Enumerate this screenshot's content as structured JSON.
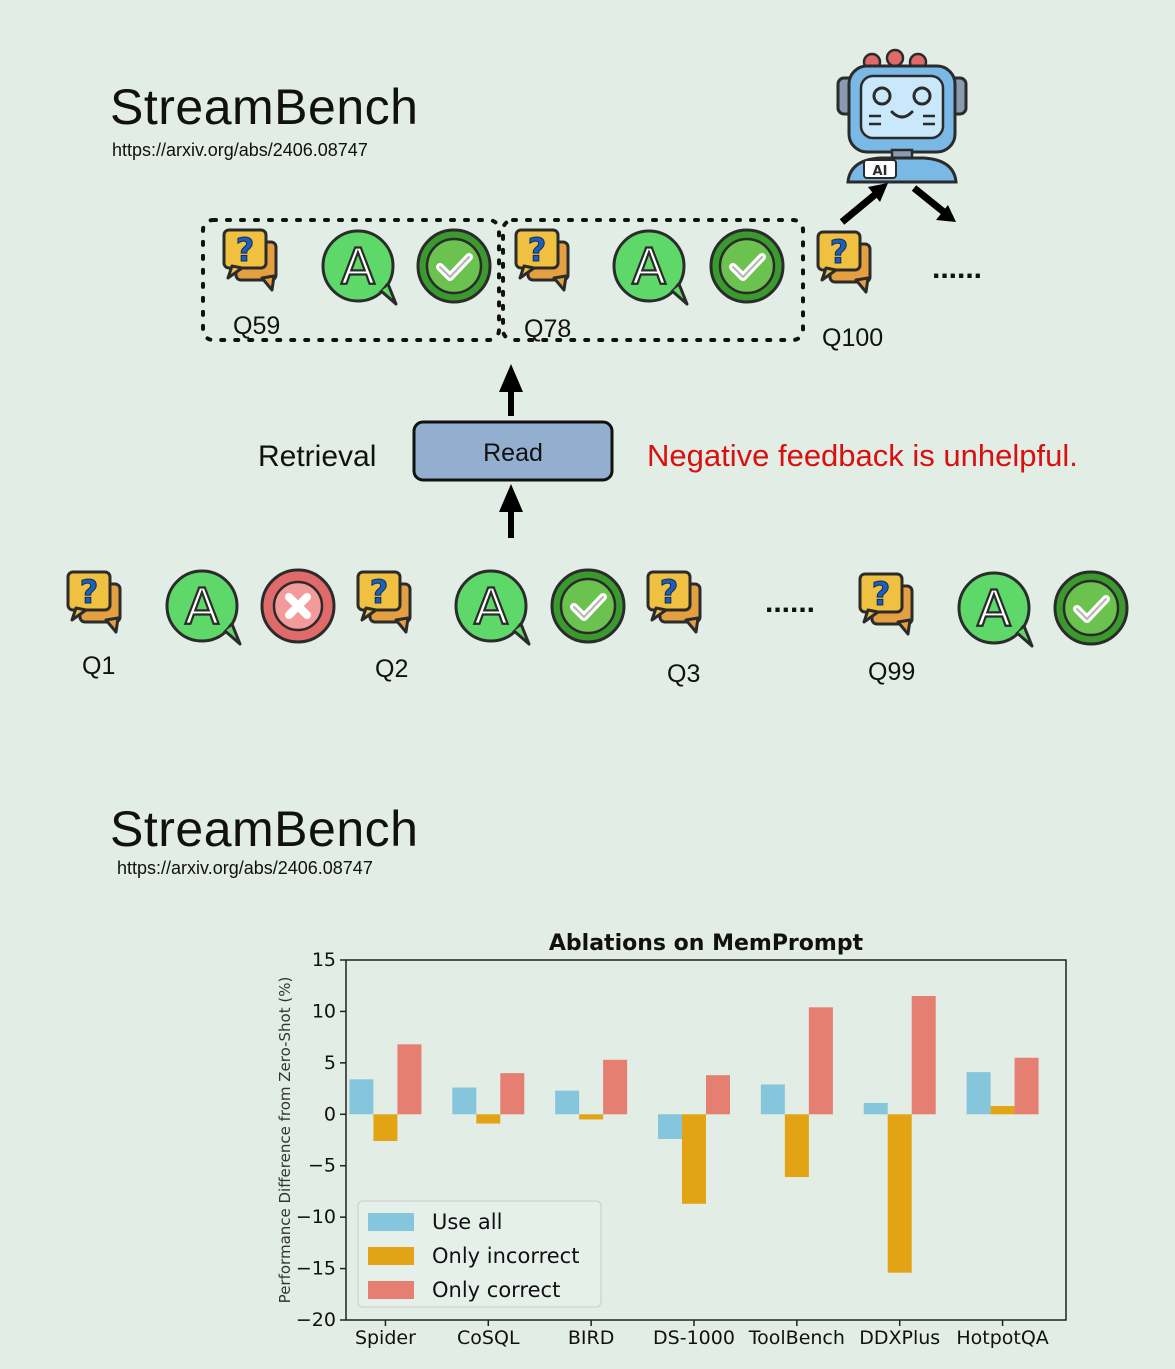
{
  "top": {
    "title": "StreamBench",
    "url": "https://arxiv.org/abs/2406.08747",
    "robot_badge": "AI",
    "retrieved": [
      {
        "label": "Q59"
      },
      {
        "label": "Q78"
      }
    ],
    "current_label": "Q100",
    "ellipsis": "......",
    "retrieval_label": "Retrieval",
    "read_button": "Read",
    "feedback_note": "Negative feedback is unhelpful.",
    "stream_labels": [
      "Q1",
      "Q2",
      "Q3",
      "Q99"
    ],
    "stream_ellipsis": "......",
    "colors": {
      "note": "#d91010",
      "read_box": "#93afcf"
    }
  },
  "bottom": {
    "title": "StreamBench",
    "url": "https://arxiv.org/abs/2406.08747"
  },
  "chart_data": {
    "type": "bar",
    "title": "Ablations on MemPrompt",
    "xlabel": "",
    "ylabel": "Performance Difference from Zero-Shot (%)",
    "ylim": [
      -20,
      15
    ],
    "yticks": [
      "15",
      "10",
      "5",
      "0",
      "−5",
      "−10",
      "−15",
      "−20"
    ],
    "ytick_values": [
      15,
      10,
      5,
      0,
      -5,
      -10,
      -15,
      -20
    ],
    "categories": [
      "Spider",
      "CoSQL",
      "BIRD",
      "DS-1000",
      "ToolBench",
      "DDXPlus",
      "HotpotQA"
    ],
    "series": [
      {
        "name": "Use all",
        "color": "#86c6dd",
        "values": [
          3.4,
          2.6,
          2.3,
          -2.4,
          2.9,
          1.1,
          4.1
        ]
      },
      {
        "name": "Only incorrect",
        "color": "#e2a315",
        "values": [
          -2.6,
          -0.9,
          -0.5,
          -8.7,
          -6.1,
          -15.4,
          0.8
        ]
      },
      {
        "name": "Only correct",
        "color": "#e57f72",
        "values": [
          6.8,
          4.0,
          5.3,
          3.8,
          10.4,
          11.5,
          5.5
        ]
      }
    ],
    "legend_position": "lower-left",
    "grid": false
  }
}
